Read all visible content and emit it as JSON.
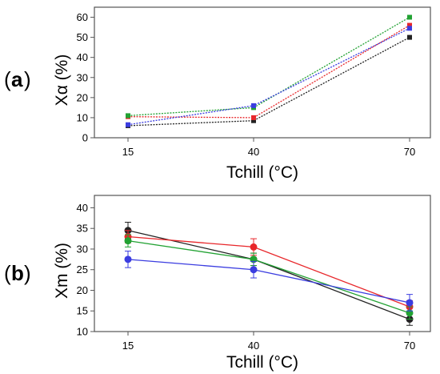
{
  "chart_data": [
    {
      "type": "line",
      "panel_label": "a",
      "xlabel": "Tchill (°C)",
      "ylabel": "Xα (%)",
      "categories": [
        "15",
        "40",
        "70"
      ],
      "ylim": [
        0,
        65
      ],
      "yticks": [
        "0",
        "10",
        "20",
        "30",
        "40",
        "50",
        "60"
      ],
      "error_bars": false,
      "series": [
        {
          "color": "#222222",
          "marker": "square",
          "values": [
            6,
            8.5,
            50
          ]
        },
        {
          "color": "#e8262a",
          "marker": "square",
          "values": [
            10.5,
            10,
            56
          ]
        },
        {
          "color": "#22a233",
          "marker": "square",
          "values": [
            11,
            15,
            60
          ]
        },
        {
          "color": "#3b3de0",
          "marker": "square",
          "values": [
            6.5,
            16,
            54.5
          ]
        }
      ]
    },
    {
      "type": "line",
      "panel_label": "b",
      "xlabel": "Tchill (°C)",
      "ylabel": "Xm (%)",
      "categories": [
        "15",
        "40",
        "70"
      ],
      "ylim": [
        10,
        43
      ],
      "yticks": [
        "10",
        "15",
        "20",
        "25",
        "30",
        "35",
        "40"
      ],
      "error_bars": true,
      "series": [
        {
          "color": "#222222",
          "marker": "circle",
          "values": [
            34.5,
            27.5,
            13
          ],
          "errors": [
            2,
            1.5,
            1.5
          ]
        },
        {
          "color": "#e8262a",
          "marker": "circle",
          "values": [
            33,
            30.5,
            16
          ],
          "errors": [
            1.5,
            2,
            1.5
          ]
        },
        {
          "color": "#22a233",
          "marker": "circle",
          "values": [
            32,
            27.5,
            14.5
          ],
          "errors": [
            1.5,
            1.5,
            1.5
          ]
        },
        {
          "color": "#3b3de0",
          "marker": "circle",
          "values": [
            27.5,
            25,
            17
          ],
          "errors": [
            2,
            2,
            2
          ]
        }
      ]
    }
  ]
}
